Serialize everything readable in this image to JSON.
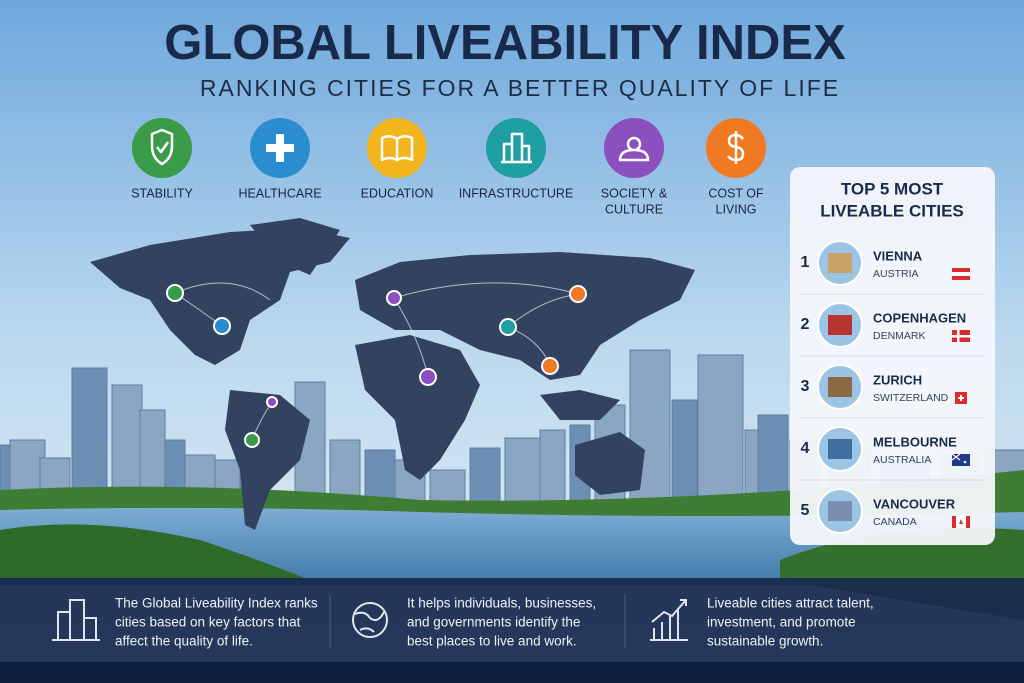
{
  "header": {
    "title": "GLOBAL LIVEABILITY INDEX",
    "subtitle": "RANKING CITIES FOR A BETTER QUALITY OF LIFE"
  },
  "factors": [
    {
      "lines": [
        "STABILITY"
      ],
      "color": "#3a9b48"
    },
    {
      "lines": [
        "HEALTHCARE"
      ],
      "color": "#2b8dd0"
    },
    {
      "lines": [
        "EDUCATION"
      ],
      "color": "#f3b51e"
    },
    {
      "lines": [
        "INFRASTRUCTURE"
      ],
      "color": "#1f9fa2"
    },
    {
      "lines": [
        "SOCIETY &",
        "CULTURE"
      ],
      "color": "#8b4fc0"
    },
    {
      "lines": [
        "COST OF",
        "LIVING"
      ],
      "color": "#ef7a22"
    }
  ],
  "ranking": {
    "title_lines": [
      "TOP 5 MOST",
      "LIVEABLE CITIES"
    ],
    "cities": [
      {
        "rank": 1,
        "city": "VIENNA",
        "country": "AUSTRIA"
      },
      {
        "rank": 2,
        "city": "COPENHAGEN",
        "country": "DENMARK"
      },
      {
        "rank": 3,
        "city": "ZURICH",
        "country": "SWITZERLAND"
      },
      {
        "rank": 4,
        "city": "MELBOURNE",
        "country": "AUSTRALIA"
      },
      {
        "rank": 5,
        "city": "VANCOUVER",
        "country": "CANADA"
      }
    ]
  },
  "footer": {
    "items": [
      {
        "lines": [
          "The Global Liveability Index ranks",
          "cities based on key factors that",
          "affect the quality of life."
        ]
      },
      {
        "lines": [
          "It helps individuals, businesses,",
          "and governments identify the",
          "best places to live and work."
        ]
      },
      {
        "lines": [
          "Liveable cities attract talent,",
          "investment, and promote",
          "sustainable growth."
        ]
      }
    ]
  }
}
